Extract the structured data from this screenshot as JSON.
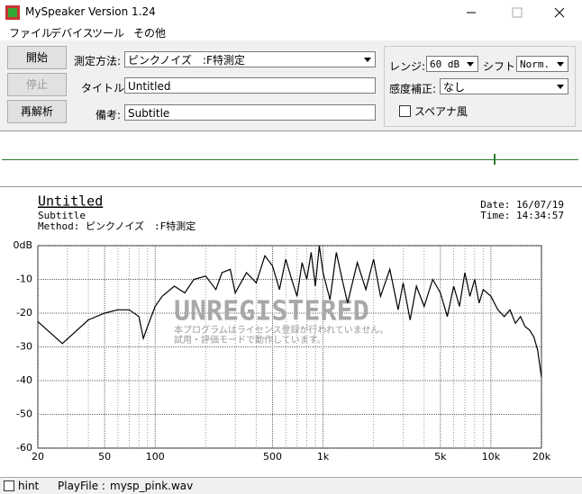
{
  "window": {
    "title": "MySpeaker Version 1.24"
  },
  "menu": [
    "ファイル",
    "デバイス",
    "ツール",
    "その他"
  ],
  "buttons": [
    "開始",
    "停止",
    "再解析"
  ],
  "form": {
    "method_label": "測定方法:",
    "method_value": "ピンクノイズ　:F特測定",
    "title_label": "タイトル:",
    "title_value": "Untitled",
    "note_label": "備考:",
    "note_value": "Subtitle",
    "range_label": "レンジ:",
    "range_value": "60 dB",
    "shift_label": "シフト:",
    "shift_value": "Norm.",
    "sens_label": "感度補正:",
    "sens_value": "なし",
    "spectrum_label": "スペアナ風"
  },
  "chart_data": {
    "type": "line",
    "title": "Untitled",
    "subtitle": "Subtitle",
    "method": "Method:  ピンクノイズ　:F特測定",
    "date": "Date: 16/07/19",
    "time": "Time: 14:34:57",
    "watermark": "UNREGISTERED",
    "watermark_notes": [
      "本プログラムはライセンス登録が行われていません。",
      "試用・評価モードで動作しています。"
    ],
    "log_x": true,
    "grid": true,
    "xlim": [
      20,
      20000
    ],
    "ylim": [
      -60,
      0
    ],
    "xticks": [
      20,
      50,
      100,
      500,
      {
        "value": 1000,
        "label": "1k"
      },
      {
        "value": 5000,
        "label": "5k"
      },
      {
        "value": 10000,
        "label": "10k"
      },
      {
        "value": 20000,
        "label": "20k"
      }
    ],
    "xminorticks": [
      30,
      40,
      60,
      70,
      80,
      90,
      200,
      300,
      400,
      600,
      700,
      800,
      900,
      2000,
      3000,
      4000,
      6000,
      7000,
      8000,
      9000
    ],
    "yticks": [
      {
        "value": 0,
        "label": "0dB"
      },
      -10,
      -20,
      -30,
      -40,
      -50,
      -60
    ],
    "x": [
      20,
      28,
      40,
      50,
      60,
      70,
      80,
      85,
      90,
      100,
      110,
      130,
      150,
      170,
      200,
      230,
      250,
      280,
      300,
      350,
      400,
      450,
      500,
      550,
      600,
      650,
      700,
      750,
      800,
      850,
      900,
      950,
      1000,
      1100,
      1200,
      1300,
      1400,
      1600,
      1800,
      2000,
      2200,
      2500,
      2800,
      3000,
      3300,
      3600,
      4000,
      4500,
      5000,
      5500,
      6000,
      6500,
      7000,
      7500,
      8000,
      8500,
      9000,
      10000,
      11000,
      12000,
      13000,
      14000,
      15000,
      16000,
      17000,
      18000,
      19000,
      20000
    ],
    "series": [
      {
        "color": "#000000",
        "values": [
          -22.5,
          -29,
          -22,
          -20,
          -19,
          -19,
          -21,
          -27.5,
          -24,
          -18,
          -15,
          -12,
          -14,
          -10,
          -9,
          -13,
          -8,
          -7,
          -14,
          -8,
          -11,
          -3,
          -6,
          -13,
          -4,
          -10,
          -15,
          -5,
          -10,
          -2,
          -12,
          0,
          -8,
          -16,
          -2,
          -10,
          -17,
          -5,
          -13,
          -4,
          -15,
          -7,
          -19,
          -11,
          -22,
          -12,
          -18,
          -10,
          -14,
          -21,
          -12,
          -18,
          -8,
          -15,
          -10,
          -17,
          -13,
          -15,
          -19,
          -21,
          -19,
          -23,
          -21,
          -24,
          -25,
          -27,
          -31,
          -39
        ]
      }
    ]
  },
  "status": {
    "hint": "hint",
    "playfile_label": "PlayFile  :",
    "playfile": "mysp_pink.wav"
  }
}
